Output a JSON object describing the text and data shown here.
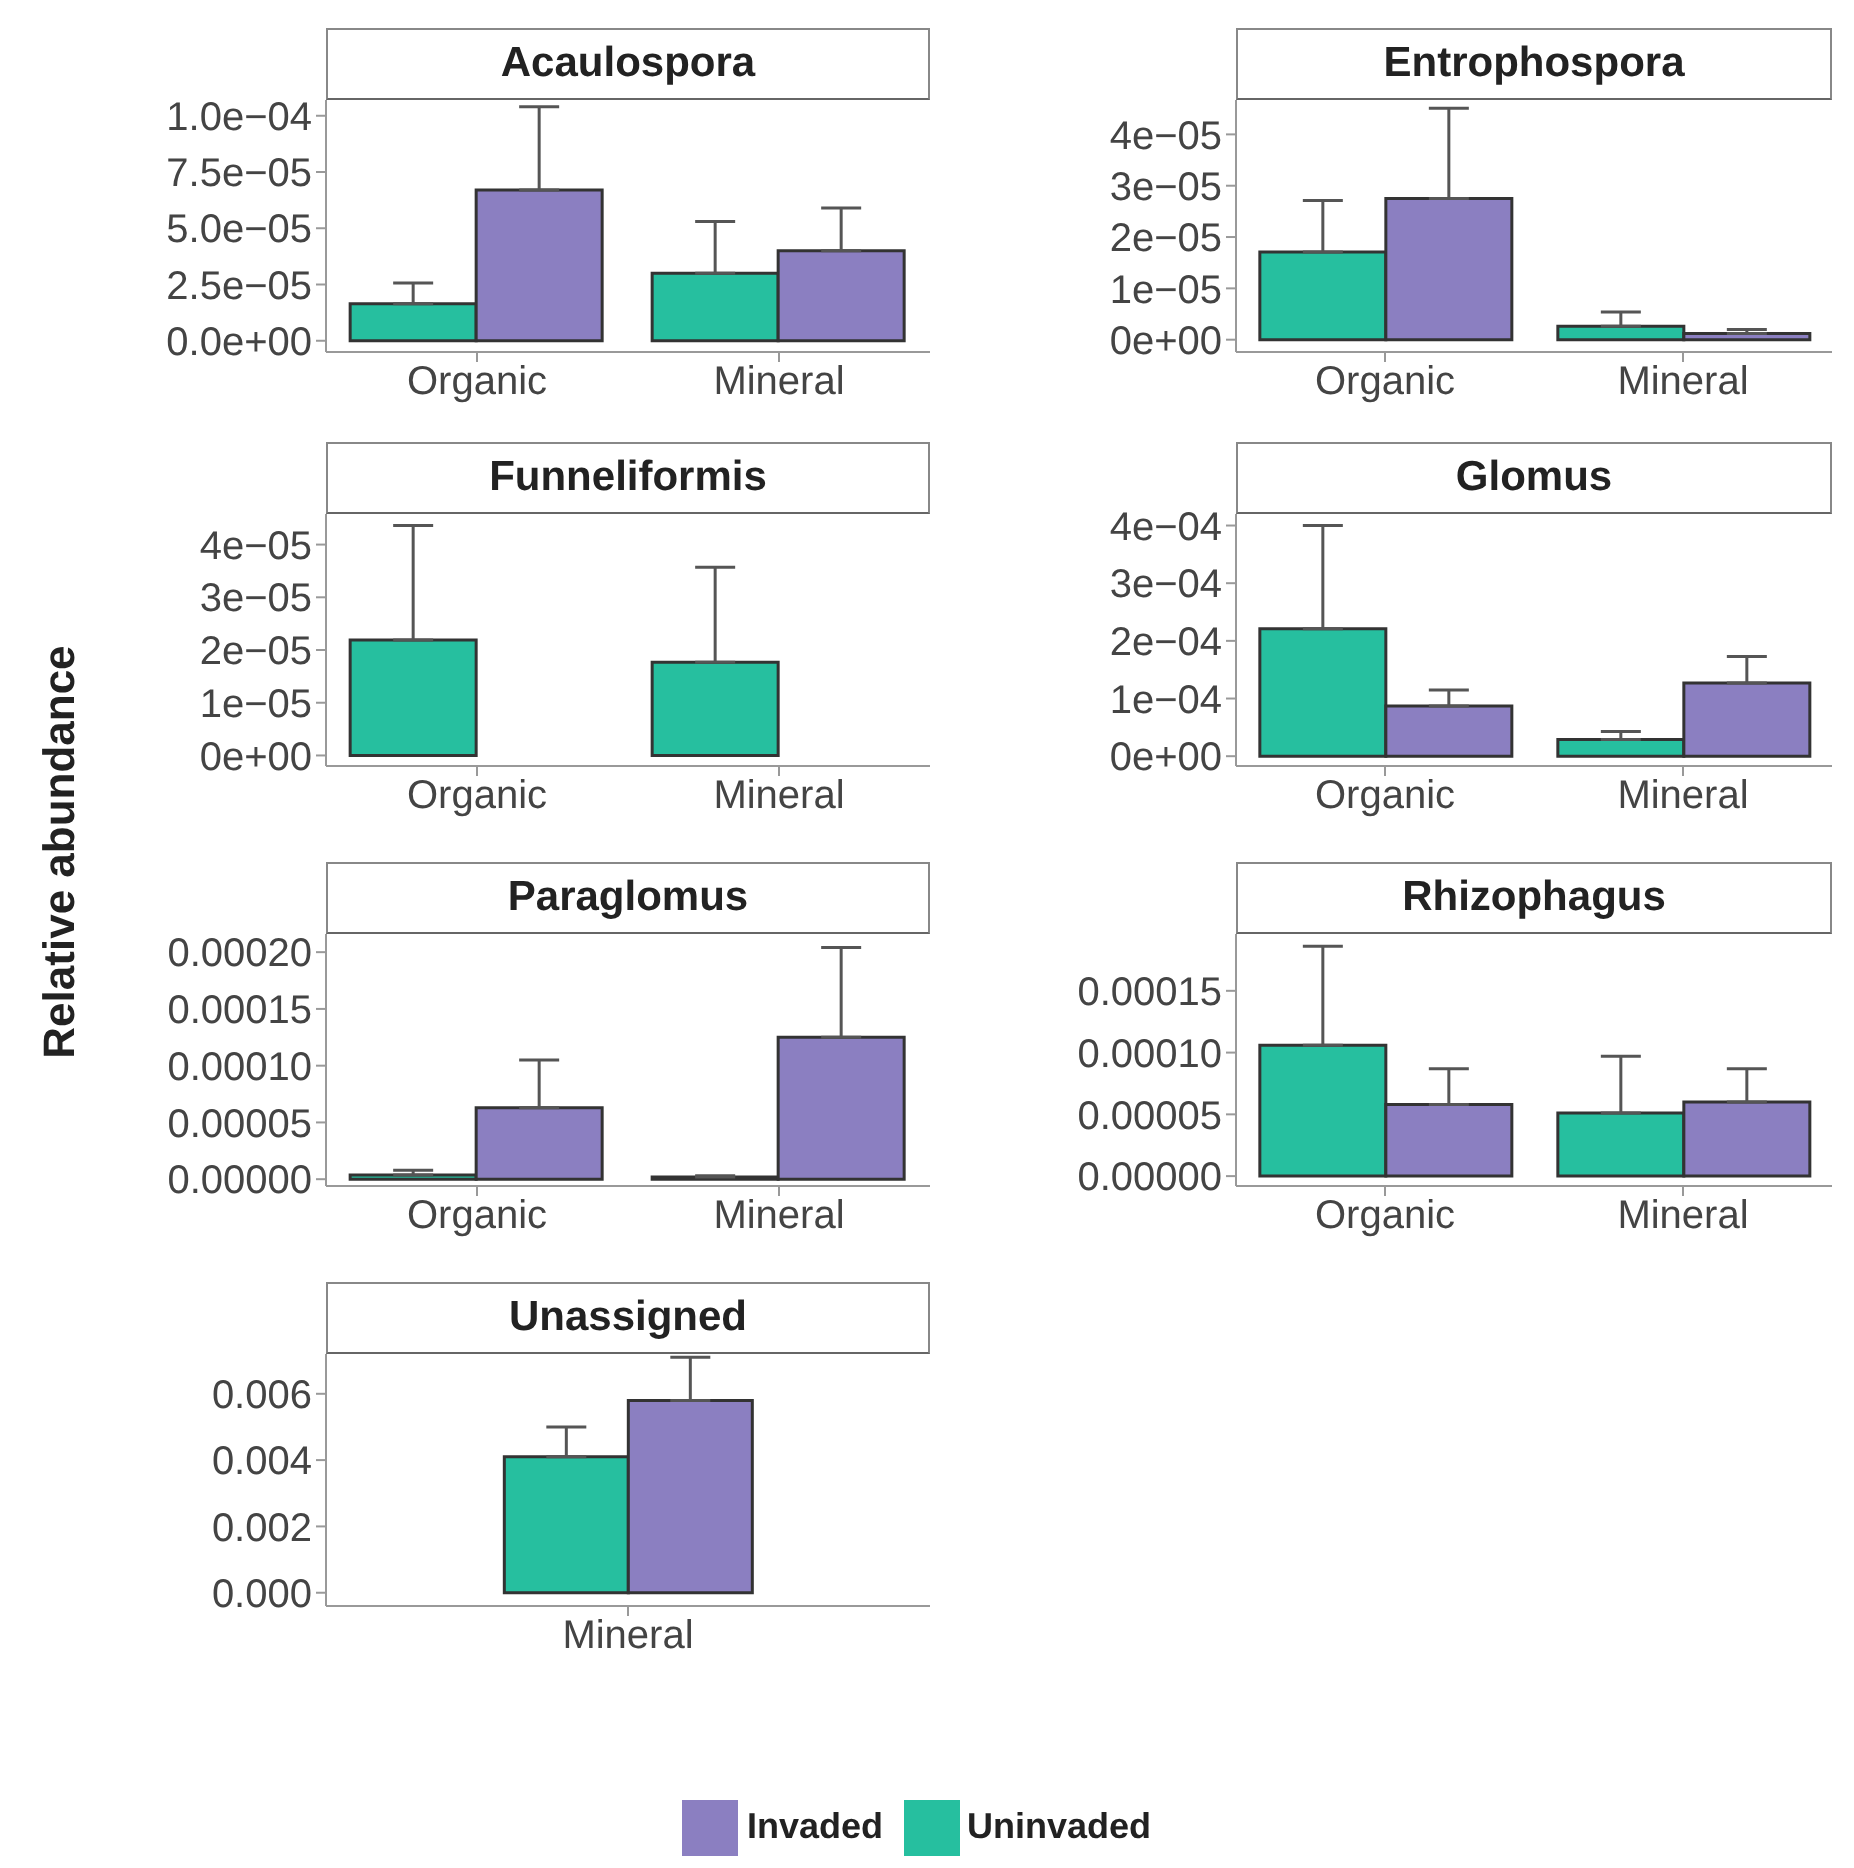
{
  "chart_data": [
    {
      "type": "bar",
      "title": "Acaulospora",
      "categories": [
        "Organic",
        "Mineral"
      ],
      "ylim": [
        -5e-06,
        0.000107
      ],
      "yticks": [
        {
          "value": 0,
          "label": "0.0e+00"
        },
        {
          "value": 2.5e-05,
          "label": "2.5e−05"
        },
        {
          "value": 5e-05,
          "label": "5.0e−05"
        },
        {
          "value": 7.5e-05,
          "label": "7.5e−05"
        },
        {
          "value": 0.0001,
          "label": "1.0e−04"
        }
      ],
      "series": [
        {
          "color": "#26bf9f",
          "values": [
            1.65e-05,
            3e-05
          ],
          "errors": [
            [
              1.65e-05,
              2.57e-05
            ],
            [
              3e-05,
              5.3e-05
            ]
          ]
        },
        {
          "color": "#8b7fc1",
          "values": [
            6.7e-05,
            4e-05
          ],
          "errors": [
            [
              6.7e-05,
              0.000104
            ],
            [
              4e-05,
              5.9e-05
            ]
          ]
        }
      ]
    },
    {
      "type": "bar",
      "title": "Entrophospora",
      "categories": [
        "Organic",
        "Mineral"
      ],
      "ylim": [
        -2.4e-06,
        4.67e-05
      ],
      "yticks": [
        {
          "value": 0,
          "label": "0e+00"
        },
        {
          "value": 1e-05,
          "label": "1e−05"
        },
        {
          "value": 2e-05,
          "label": "2e−05"
        },
        {
          "value": 3e-05,
          "label": "3e−05"
        },
        {
          "value": 4e-05,
          "label": "4e−05"
        }
      ],
      "series": [
        {
          "color": "#26bf9f",
          "values": [
            1.71e-05,
            2.6e-06
          ],
          "errors": [
            [
              1.71e-05,
              2.71e-05
            ],
            [
              2.6e-06,
              5.4e-06
            ]
          ]
        },
        {
          "color": "#8b7fc1",
          "values": [
            2.75e-05,
            1.2e-06
          ],
          "errors": [
            [
              2.75e-05,
              4.51e-05
            ],
            [
              1.2e-06,
              2e-06
            ]
          ]
        }
      ]
    },
    {
      "type": "bar",
      "title": "Funneliformis",
      "ylabel": "Relative abundance",
      "categories": [
        "Organic",
        "Mineral"
      ],
      "ylim": [
        -2e-06,
        4.58e-05
      ],
      "yticks": [
        {
          "value": 0,
          "label": "0e+00"
        },
        {
          "value": 1e-05,
          "label": "1e−05"
        },
        {
          "value": 2e-05,
          "label": "2e−05"
        },
        {
          "value": 3e-05,
          "label": "3e−05"
        },
        {
          "value": 4e-05,
          "label": "4e−05"
        }
      ],
      "series": [
        {
          "color": "#26bf9f",
          "values": [
            2.19e-05,
            1.77e-05
          ],
          "errors": [
            [
              2.19e-05,
              4.36e-05
            ],
            [
              1.77e-05,
              3.57e-05
            ]
          ]
        },
        {
          "color": "#8b7fc1",
          "values": [
            0,
            0
          ]
        }
      ]
    },
    {
      "type": "bar",
      "title": "Glomus",
      "categories": [
        "Organic",
        "Mineral"
      ],
      "ylim": [
        -1.7e-05,
        0.00042
      ],
      "yticks": [
        {
          "value": 0,
          "label": "0e+00"
        },
        {
          "value": 0.0001,
          "label": "1e−04"
        },
        {
          "value": 0.0002,
          "label": "2e−04"
        },
        {
          "value": 0.0003,
          "label": "3e−04"
        },
        {
          "value": 0.0004,
          "label": "4e−04"
        }
      ],
      "series": [
        {
          "color": "#26bf9f",
          "values": [
            0.000221,
            2.9e-05
          ],
          "errors": [
            [
              0.000221,
              0.0004
            ],
            [
              2.9e-05,
              4.3e-05
            ]
          ]
        },
        {
          "color": "#8b7fc1",
          "values": [
            8.7e-05,
            0.000127
          ],
          "errors": [
            [
              8.7e-05,
              0.000115
            ],
            [
              0.000127,
              0.000173
            ]
          ]
        }
      ]
    },
    {
      "type": "bar",
      "title": "Paraglomus",
      "categories": [
        "Organic",
        "Mineral"
      ],
      "ylim": [
        -6e-06,
        0.000216
      ],
      "yticks": [
        {
          "value": 0,
          "label": "0.00000"
        },
        {
          "value": 5e-05,
          "label": "0.00005"
        },
        {
          "value": 0.0001,
          "label": "0.00010"
        },
        {
          "value": 0.00015,
          "label": "0.00015"
        },
        {
          "value": 0.0002,
          "label": "0.00020"
        }
      ],
      "series": [
        {
          "color": "#26bf9f",
          "values": [
            3.6e-06,
            2e-06
          ],
          "errors": [
            [
              3.6e-06,
              7.8e-06
            ],
            [
              2e-06,
              3e-06
            ]
          ]
        },
        {
          "color": "#8b7fc1",
          "values": [
            6.3e-05,
            0.000125
          ],
          "errors": [
            [
              6.3e-05,
              0.000105
            ],
            [
              0.000125,
              0.000204
            ]
          ]
        }
      ]
    },
    {
      "type": "bar",
      "title": "Rhizophagus",
      "categories": [
        "Organic",
        "Mineral"
      ],
      "ylim": [
        -8e-06,
        0.000196
      ],
      "yticks": [
        {
          "value": 0,
          "label": "0.00000"
        },
        {
          "value": 5e-05,
          "label": "0.00005"
        },
        {
          "value": 0.0001,
          "label": "0.00010"
        },
        {
          "value": 0.00015,
          "label": "0.00015"
        }
      ],
      "series": [
        {
          "color": "#26bf9f",
          "values": [
            0.000106,
            5.1e-05
          ],
          "errors": [
            [
              0.000106,
              0.000186
            ],
            [
              5.1e-05,
              9.7e-05
            ]
          ]
        },
        {
          "color": "#8b7fc1",
          "values": [
            5.8e-05,
            6e-05
          ],
          "errors": [
            [
              5.8e-05,
              8.7e-05
            ],
            [
              6e-05,
              8.7e-05
            ]
          ]
        }
      ]
    },
    {
      "type": "bar",
      "title": "Unassigned",
      "categories": [
        "Mineral"
      ],
      "ylim": [
        -0.0004,
        0.0072
      ],
      "legend": "bottom",
      "yticks": [
        {
          "value": 0,
          "label": "0.000"
        },
        {
          "value": 0.002,
          "label": "0.002"
        },
        {
          "value": 0.004,
          "label": "0.004"
        },
        {
          "value": 0.006,
          "label": "0.006"
        }
      ],
      "series": [
        {
          "name": "Uninvaded",
          "color": "#26bf9f",
          "values": [
            0.0041
          ],
          "errors": [
            [
              0.0041,
              0.005
            ]
          ]
        },
        {
          "name": "Invaded",
          "color": "#8b7fc1",
          "values": [
            0.0058
          ],
          "errors": [
            [
              0.0058,
              0.0071
            ]
          ]
        }
      ]
    }
  ]
}
